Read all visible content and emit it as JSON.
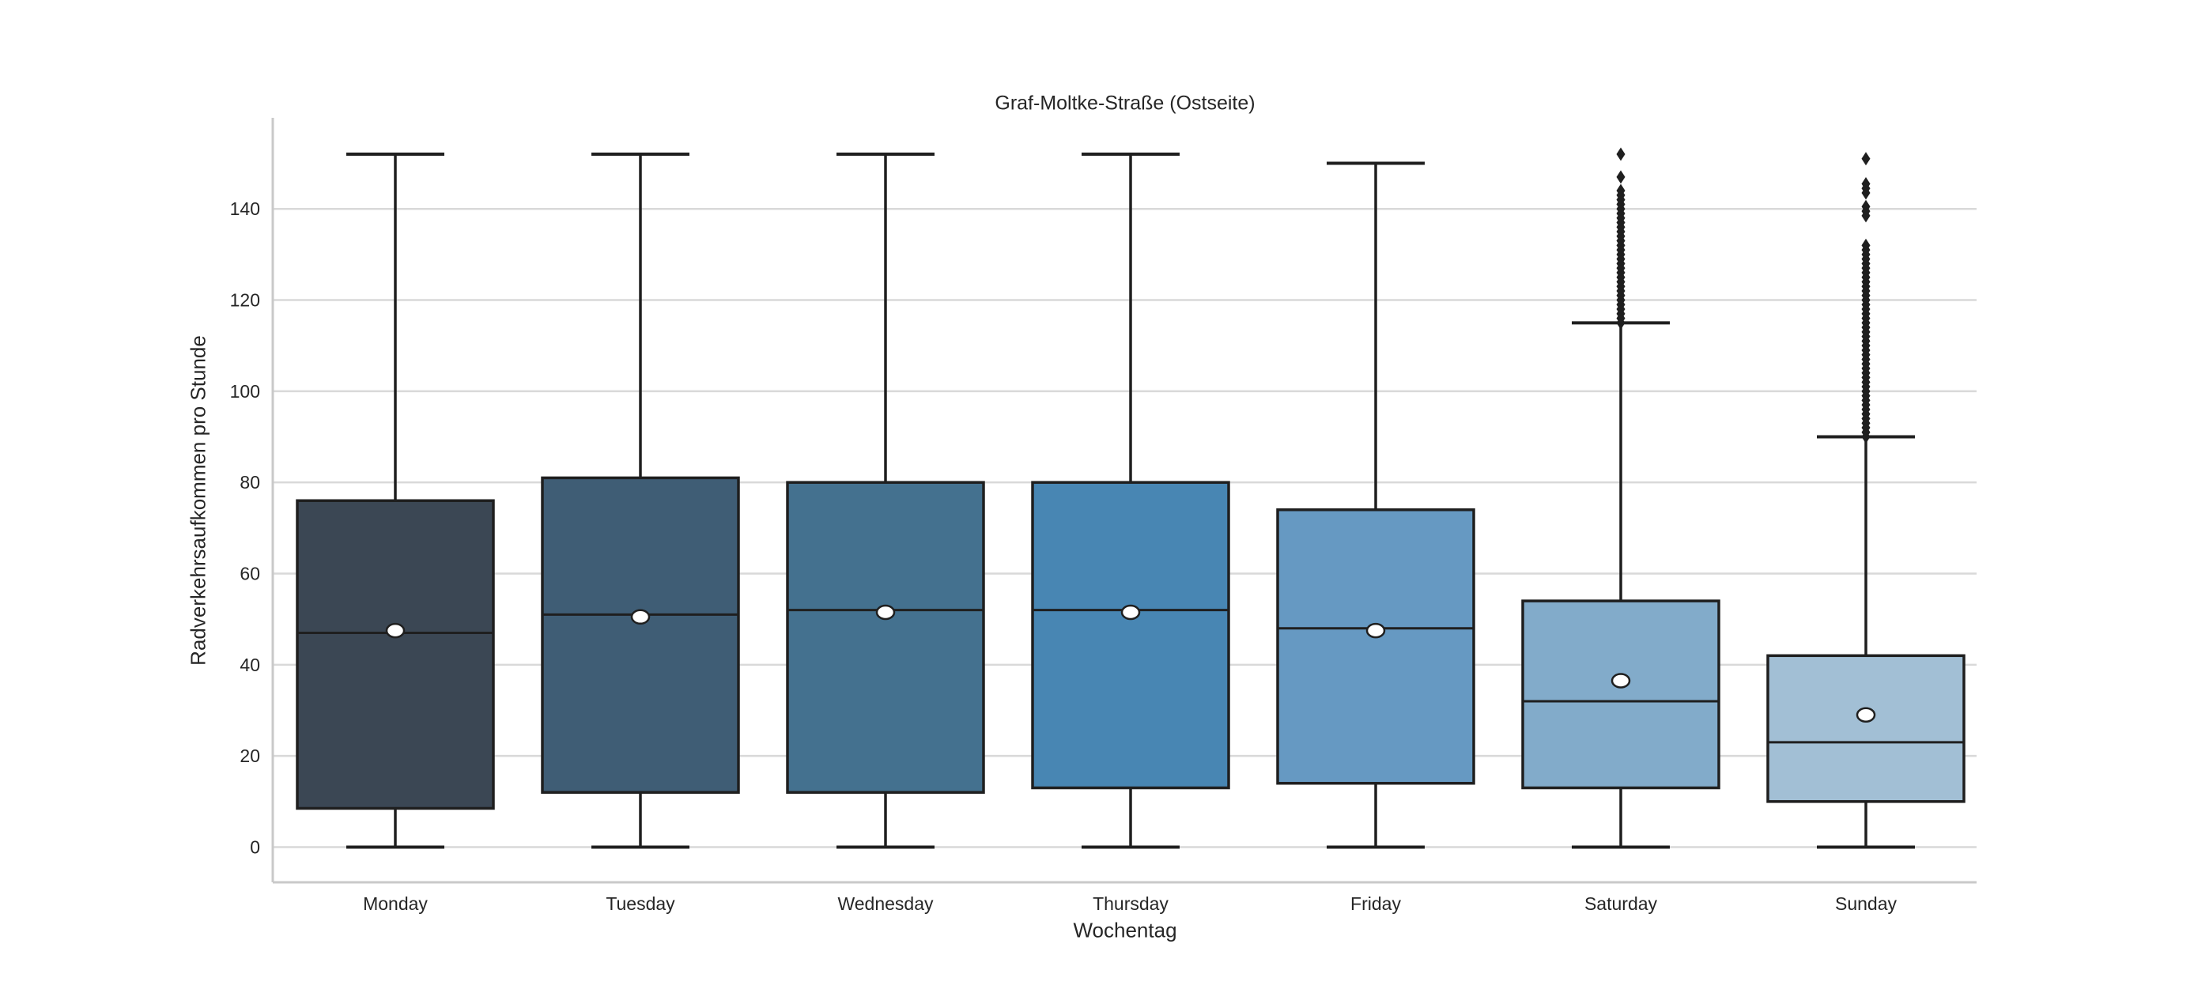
{
  "chart_data": {
    "type": "boxplot",
    "title": "Graf-Moltke-Straße (Ostseite)",
    "xlabel": "Wochentag",
    "ylabel": "Radverkehrsaufkommen pro Stunde",
    "categories": [
      "Monday",
      "Tuesday",
      "Wednesday",
      "Thursday",
      "Friday",
      "Saturday",
      "Sunday"
    ],
    "yticks": [
      0,
      20,
      40,
      60,
      80,
      100,
      120,
      140
    ],
    "ylim": [
      -7.7,
      156.5
    ],
    "grid": "horizontal-only",
    "legend": "none",
    "series": [
      {
        "name": "Monday",
        "whisker_low": 0,
        "q1": 8.5,
        "median": 47,
        "mean": 47.5,
        "q3": 76,
        "whisker_high": 152,
        "color": "#3B4754",
        "outliers": []
      },
      {
        "name": "Tuesday",
        "whisker_low": 0,
        "q1": 12,
        "median": 51,
        "mean": 50.5,
        "q3": 81,
        "whisker_high": 152,
        "color": "#3F5D75",
        "outliers": []
      },
      {
        "name": "Wednesday",
        "whisker_low": 0,
        "q1": 12,
        "median": 52,
        "mean": 51.5,
        "q3": 80,
        "whisker_high": 152,
        "color": "#44718F",
        "outliers": []
      },
      {
        "name": "Thursday",
        "whisker_low": 0,
        "q1": 13,
        "median": 52,
        "mean": 51.5,
        "q3": 80,
        "whisker_high": 152,
        "color": "#4886B3",
        "outliers": []
      },
      {
        "name": "Friday",
        "whisker_low": 0,
        "q1": 14,
        "median": 48,
        "mean": 47.5,
        "q3": 74,
        "whisker_high": 150,
        "color": "#6699C2",
        "outliers": []
      },
      {
        "name": "Saturday",
        "whisker_low": 0,
        "q1": 13,
        "median": 32,
        "mean": 36.5,
        "q3": 54,
        "whisker_high": 115,
        "color": "#82ABCA",
        "outliers": [
          115,
          116,
          117,
          118,
          119,
          120,
          121,
          122,
          123,
          124,
          125,
          126,
          127,
          128,
          129,
          130,
          131,
          132,
          133,
          134,
          135,
          136,
          137,
          138,
          139,
          140,
          141,
          142,
          143,
          144,
          147,
          152
        ]
      },
      {
        "name": "Sunday",
        "whisker_low": 0,
        "q1": 10,
        "median": 23,
        "mean": 29,
        "q3": 42,
        "whisker_high": 90,
        "color": "#A2BFD5",
        "outliers": [
          90,
          91,
          92,
          93,
          94,
          95,
          96,
          97,
          98,
          99,
          100,
          101,
          102,
          103,
          104,
          105,
          106,
          107,
          108,
          109,
          110,
          111,
          112,
          113,
          114,
          115,
          116,
          117,
          118,
          119,
          120,
          121,
          122,
          123,
          124,
          125,
          126,
          127,
          128,
          129,
          130,
          131,
          132,
          138.5,
          139.5,
          140.5,
          143.5,
          144.5,
          145.5,
          151
        ]
      }
    ],
    "style": {
      "edge_color": "#1F1F1F",
      "median_color": "#1F1F1F",
      "grid_color": "#D9D9D9",
      "spine_color": "#C9C9C9",
      "mean_marker": "white-circle-black-edge",
      "outlier_marker": "black-diamond",
      "background": "#FFFFFF"
    }
  }
}
